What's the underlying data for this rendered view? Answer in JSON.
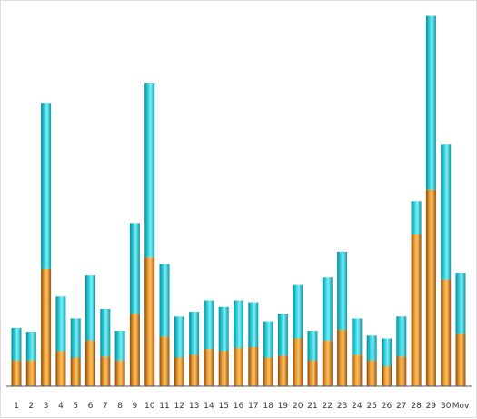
{
  "chart_data": {
    "type": "bar",
    "stacked": true,
    "title": "",
    "xlabel": "",
    "ylabel": "",
    "grid": false,
    "legend": "none",
    "categories": [
      "1",
      "2",
      "3",
      "4",
      "5",
      "6",
      "7",
      "8",
      "9",
      "10",
      "11",
      "12",
      "13",
      "14",
      "15",
      "16",
      "17",
      "18",
      "19",
      "20",
      "21",
      "22",
      "23",
      "24",
      "25",
      "26",
      "27",
      "28",
      "29",
      "30",
      "Mov"
    ],
    "series": [
      {
        "color": "#e08a1e",
        "values": [
          27,
          27,
          123,
          37,
          30,
          48,
          31,
          27,
          76,
          135,
          52,
          30,
          33,
          39,
          37,
          40,
          41,
          30,
          32,
          50,
          27,
          48,
          59,
          33,
          27,
          21,
          31,
          159,
          206,
          112,
          55
        ]
      },
      {
        "color": "#22c8d4",
        "values": [
          34,
          30,
          174,
          57,
          41,
          68,
          50,
          31,
          95,
          183,
          76,
          43,
          45,
          51,
          46,
          50,
          47,
          38,
          44,
          56,
          31,
          66,
          82,
          38,
          26,
          29,
          42,
          35,
          182,
          142,
          64
        ]
      }
    ],
    "ylim": [
      0,
      400
    ]
  },
  "colors": {
    "orange": "#e08a1e",
    "cyan": "#22c8d4",
    "axis": "#555555"
  }
}
